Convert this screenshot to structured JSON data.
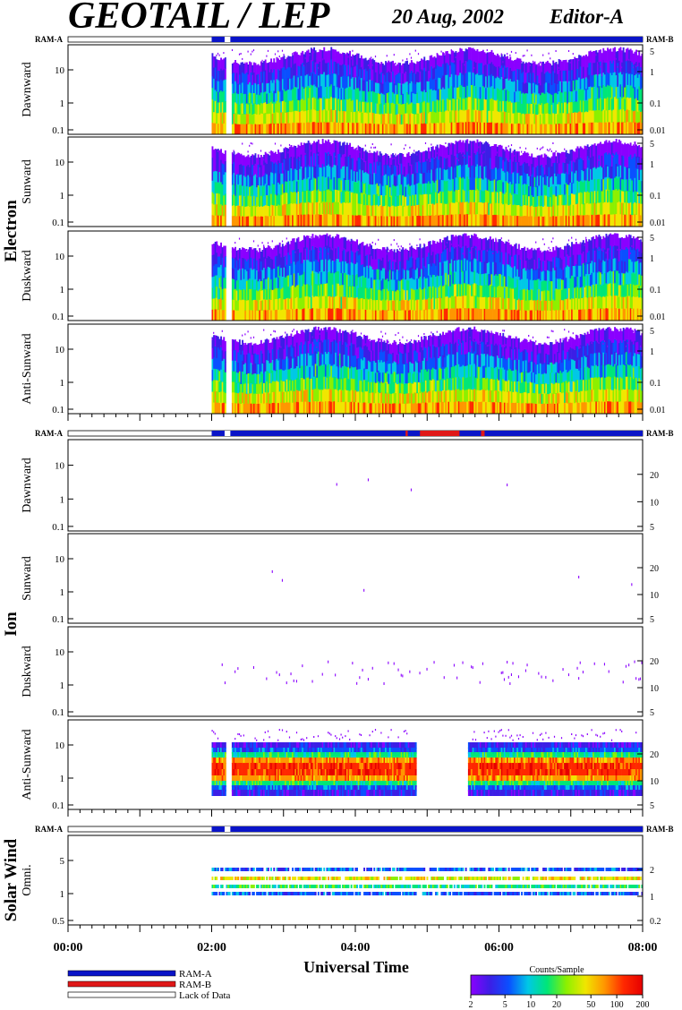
{
  "header": {
    "title": "GEOTAIL / LEP",
    "date": "20 Aug, 2002",
    "editor": "Editor-A"
  },
  "ram_labels": {
    "a": "RAM-A",
    "b": "RAM-B"
  },
  "colors": {
    "ram_a": "#0a14c8",
    "ram_b": "#e01818",
    "lack_of_data": "#ffffff",
    "colorscale": [
      "#8a00ff",
      "#3c1ee6",
      "#0a50ff",
      "#00c8e6",
      "#00e678",
      "#8cf000",
      "#f0e600",
      "#ff9600",
      "#ff2800",
      "#e60000"
    ]
  },
  "chart_data": [
    {
      "type": "heatmap",
      "group": "Electron",
      "ylabel": "Dawnward",
      "left_ticks": [
        "0.1",
        "1",
        "10"
      ],
      "right_ticks": [
        "0.01",
        "0.1",
        "1",
        "5"
      ],
      "data_start_hour": 2.0,
      "gaps": [
        [
          2.18,
          2.26
        ]
      ]
    },
    {
      "type": "heatmap",
      "group": "Electron",
      "ylabel": "Sunward",
      "left_ticks": [
        "0.1",
        "1",
        "10"
      ],
      "right_ticks": [
        "0.01",
        "0.1",
        "1",
        "5"
      ],
      "data_start_hour": 2.0,
      "gaps": [
        [
          2.18,
          2.26
        ]
      ]
    },
    {
      "type": "heatmap",
      "group": "Electron",
      "ylabel": "Duskward",
      "left_ticks": [
        "0.1",
        "1",
        "10"
      ],
      "right_ticks": [
        "0.01",
        "0.1",
        "1",
        "5"
      ],
      "data_start_hour": 2.0,
      "gaps": [
        [
          2.18,
          2.26
        ]
      ]
    },
    {
      "type": "heatmap",
      "group": "Electron",
      "ylabel": "Anti-Sunward",
      "left_ticks": [
        "0.1",
        "1",
        "10"
      ],
      "right_ticks": [
        "0.01",
        "0.1",
        "1",
        "5"
      ],
      "data_start_hour": 2.0,
      "gaps": [
        [
          2.18,
          2.26
        ]
      ]
    },
    {
      "type": "heatmap",
      "group": "Ion",
      "ylabel": "Dawnward",
      "left_ticks": [
        "0.1",
        "1",
        "10"
      ],
      "right_ticks": [
        "5",
        "10",
        "20"
      ]
    },
    {
      "type": "heatmap",
      "group": "Ion",
      "ylabel": "Sunward",
      "left_ticks": [
        "0.1",
        "1",
        "10"
      ],
      "right_ticks": [
        "5",
        "10",
        "20"
      ]
    },
    {
      "type": "heatmap",
      "group": "Ion",
      "ylabel": "Duskward",
      "left_ticks": [
        "0.1",
        "1",
        "10"
      ],
      "right_ticks": [
        "5",
        "10",
        "20"
      ]
    },
    {
      "type": "heatmap",
      "group": "Ion",
      "ylabel": "Anti-Sunward",
      "left_ticks": [
        "0.1",
        "1",
        "10"
      ],
      "right_ticks": [
        "5",
        "10",
        "20"
      ],
      "data_start_hour": 2.0,
      "gaps": [
        [
          2.18,
          2.26
        ],
        [
          4.85,
          5.55
        ]
      ]
    },
    {
      "type": "heatmap",
      "group": "Solar Wind",
      "ylabel": "Omni.",
      "left_ticks": [
        "0.5",
        "1",
        "5"
      ],
      "right_ticks": [
        "0.2",
        "1",
        "2"
      ],
      "data_start_hour": 2.0
    }
  ],
  "ram_bars": [
    {
      "segments": [
        [
          "a",
          2.0,
          8.0
        ]
      ],
      "gaps": [
        [
          2.18,
          2.26
        ]
      ]
    },
    {
      "segments": [
        [
          "a",
          2.0,
          8.0
        ],
        [
          "b",
          4.9,
          5.45
        ],
        [
          "b",
          5.75,
          5.8
        ],
        [
          "b",
          4.7,
          4.73
        ]
      ],
      "gaps": [
        [
          2.18,
          2.26
        ]
      ]
    },
    {
      "segments": [
        [
          "a",
          2.0,
          8.0
        ]
      ],
      "gaps": [
        [
          2.18,
          2.26
        ]
      ]
    }
  ],
  "x_axis": {
    "label": "Universal Time",
    "range_hours": [
      0,
      8
    ],
    "ticks": [
      {
        "hour": 0,
        "label": "00:00"
      },
      {
        "hour": 2,
        "label": "02:00"
      },
      {
        "hour": 4,
        "label": "04:00"
      },
      {
        "hour": 6,
        "label": "06:00"
      },
      {
        "hour": 8,
        "label": "08:00"
      }
    ]
  },
  "legend": {
    "ram_a": "RAM-A",
    "ram_b": "RAM-B",
    "lack": "Lack of Data"
  },
  "colorbar": {
    "title": "Counts/Sample",
    "ticks": [
      "2",
      "5",
      "10",
      "20",
      "50",
      "100",
      "200"
    ]
  }
}
